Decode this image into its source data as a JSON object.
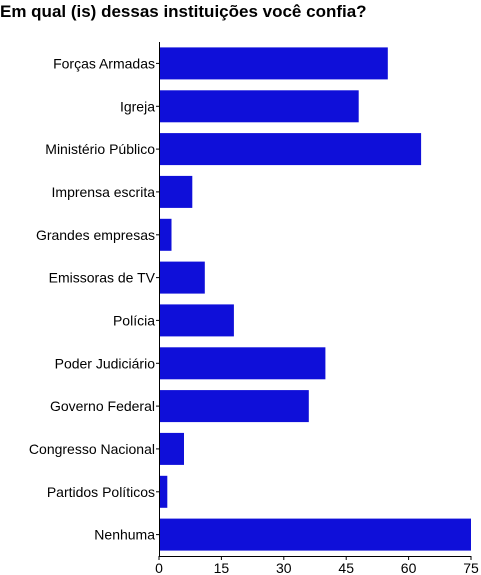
{
  "chart_data": {
    "type": "bar",
    "orientation": "horizontal",
    "title": "Em qual (is) dessas instituições você confia?",
    "categories": [
      "Forças Armadas",
      "Igreja",
      "Ministério Público",
      "Imprensa escrita",
      "Grandes empresas",
      "Emissoras de TV",
      "Polícia",
      "Poder Judiciário",
      "Governo Federal",
      "Congresso Nacional",
      "Partidos Políticos",
      "Nenhuma"
    ],
    "values": [
      55,
      48,
      63,
      8,
      3,
      11,
      18,
      40,
      36,
      6,
      2,
      75
    ],
    "xlim": [
      0,
      75
    ],
    "xticks": [
      0,
      15,
      30,
      45,
      60,
      75
    ],
    "grid": false,
    "bar_color": "#0f0fd9"
  }
}
